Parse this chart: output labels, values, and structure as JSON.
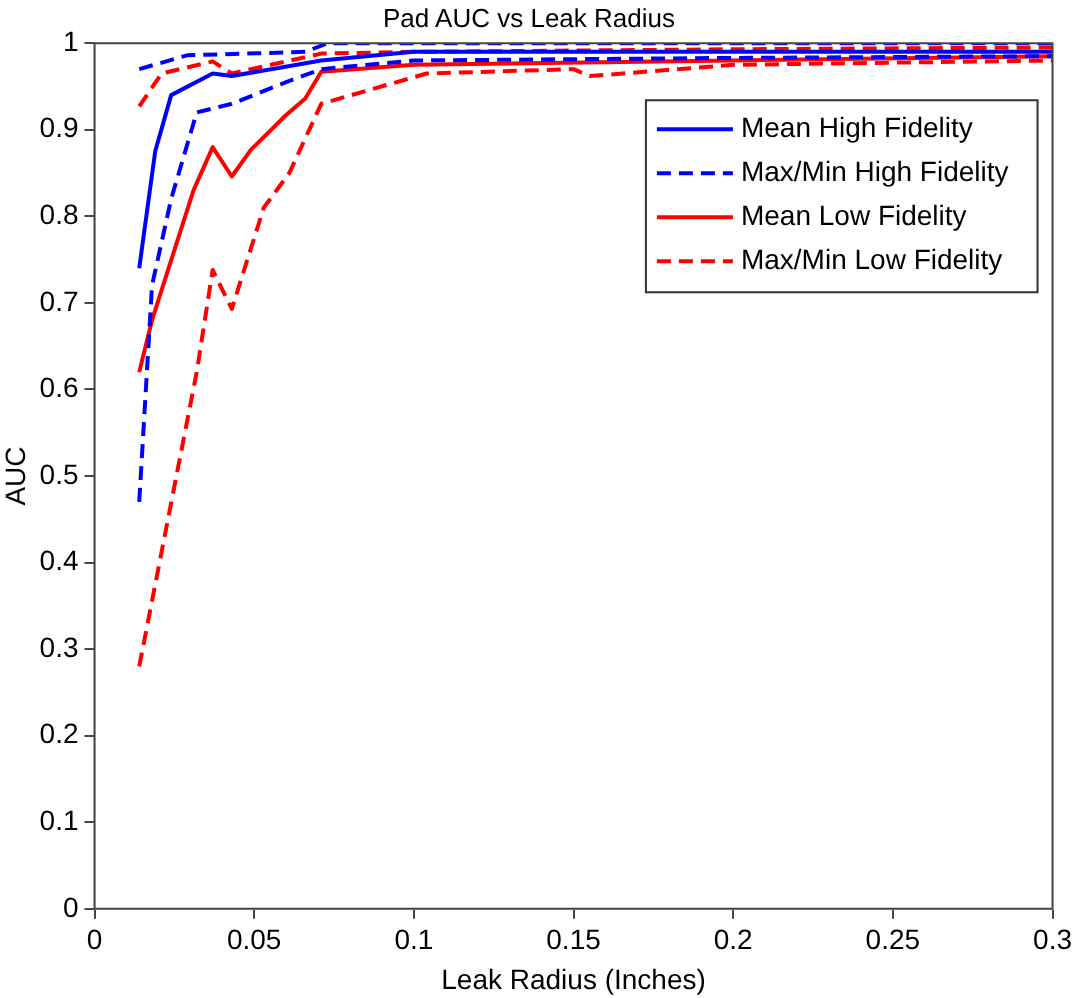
{
  "chart_data": {
    "type": "line",
    "title": "Pad AUC vs Leak Radius",
    "xlabel": "Leak Radius (Inches)",
    "ylabel": "AUC",
    "xlim": [
      0,
      0.3
    ],
    "xticks": [
      0,
      0.05,
      0.1,
      0.15,
      0.2,
      0.25,
      0.3
    ],
    "ylim": [
      0,
      1
    ],
    "yticks": [
      0,
      0.1,
      0.2,
      0.3,
      0.4,
      0.5,
      0.6,
      0.7,
      0.8,
      0.9,
      1
    ],
    "grid": false,
    "legend": "top right",
    "marker": "none",
    "series": [
      {
        "name": "Mean High Fidelity",
        "color": "#0000ff",
        "line_style": "solid",
        "x": [
          0.014,
          0.019,
          0.024,
          0.037,
          0.043,
          0.071,
          0.1,
          0.15,
          0.2,
          0.25,
          0.3
        ],
        "values": [
          0.74,
          0.875,
          0.94,
          0.965,
          0.962,
          0.98,
          0.99,
          0.99,
          0.99,
          0.99,
          0.99
        ]
      },
      {
        "name": "Max/Min High Fidelity",
        "color": "#0000ff",
        "line_style": "dashed",
        "x": [
          0.014,
          0.029,
          0.066,
          0.073,
          0.1,
          0.15,
          0.2,
          0.25,
          0.3
        ],
        "values": [
          0.97,
          0.986,
          0.99,
          1,
          1,
          1,
          1,
          1,
          1
        ]
      },
      {
        "name": null,
        "color": "#0000ff",
        "line_style": "dashed",
        "x": [
          0.014,
          0.018,
          0.024,
          0.032,
          0.043,
          0.06,
          0.071,
          0.1,
          0.2,
          0.3
        ],
        "values": [
          0.47,
          0.72,
          0.82,
          0.92,
          0.93,
          0.955,
          0.97,
          0.98,
          0.983,
          0.985
        ]
      },
      {
        "name": "Mean Low Fidelity",
        "color": "#ff0000",
        "line_style": "solid",
        "x": [
          0.014,
          0.018,
          0.031,
          0.037,
          0.043,
          0.049,
          0.06,
          0.066,
          0.071,
          0.1,
          0.2,
          0.3
        ],
        "values": [
          0.62,
          0.68,
          0.83,
          0.88,
          0.846,
          0.877,
          0.917,
          0.936,
          0.967,
          0.975,
          0.98,
          0.985
        ]
      },
      {
        "name": "Max/Min Low Fidelity",
        "color": "#ff0000",
        "line_style": "dashed",
        "x": [
          0.014,
          0.021,
          0.037,
          0.043,
          0.071,
          0.1,
          0.2,
          0.3
        ],
        "values": [
          0.927,
          0.965,
          0.979,
          0.965,
          0.988,
          0.99,
          0.993,
          0.995
        ]
      },
      {
        "name": null,
        "color": "#ff0000",
        "line_style": "dashed",
        "x": [
          0.014,
          0.032,
          0.037,
          0.043,
          0.053,
          0.061,
          0.071,
          0.104,
          0.15,
          0.155,
          0.2,
          0.3
        ],
        "values": [
          0.28,
          0.62,
          0.738,
          0.693,
          0.81,
          0.85,
          0.93,
          0.965,
          0.97,
          0.962,
          0.975,
          0.98
        ]
      }
    ]
  }
}
